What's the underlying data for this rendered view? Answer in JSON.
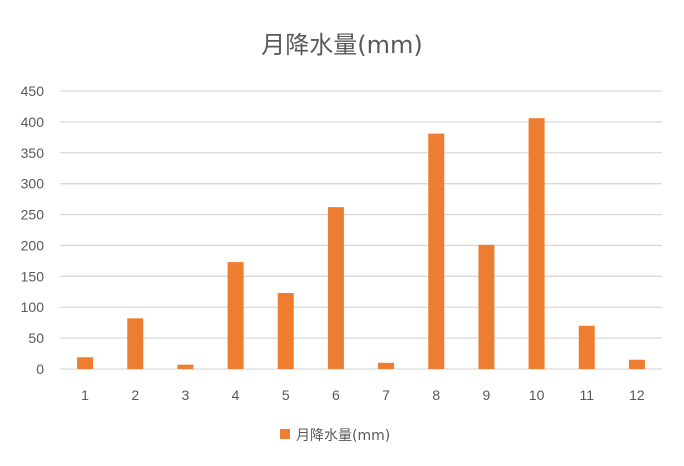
{
  "chart_data": {
    "type": "bar",
    "title": "月降水量(mm)",
    "categories": [
      "1",
      "2",
      "3",
      "4",
      "5",
      "6",
      "7",
      "8",
      "9",
      "10",
      "11",
      "12"
    ],
    "series": [
      {
        "name": "月降水量(mm)",
        "values": [
          19,
          82,
          7,
          173,
          123,
          262,
          10,
          381,
          201,
          406,
          70,
          15
        ],
        "color": "#ED7D31"
      }
    ],
    "xlabel": "",
    "ylabel": "",
    "ylim": [
      0,
      450
    ],
    "yticks": [
      0,
      50,
      100,
      150,
      200,
      250,
      300,
      350,
      400,
      450
    ],
    "grid": true,
    "gridColor": "#D9D9D9",
    "legend": "bottom"
  }
}
